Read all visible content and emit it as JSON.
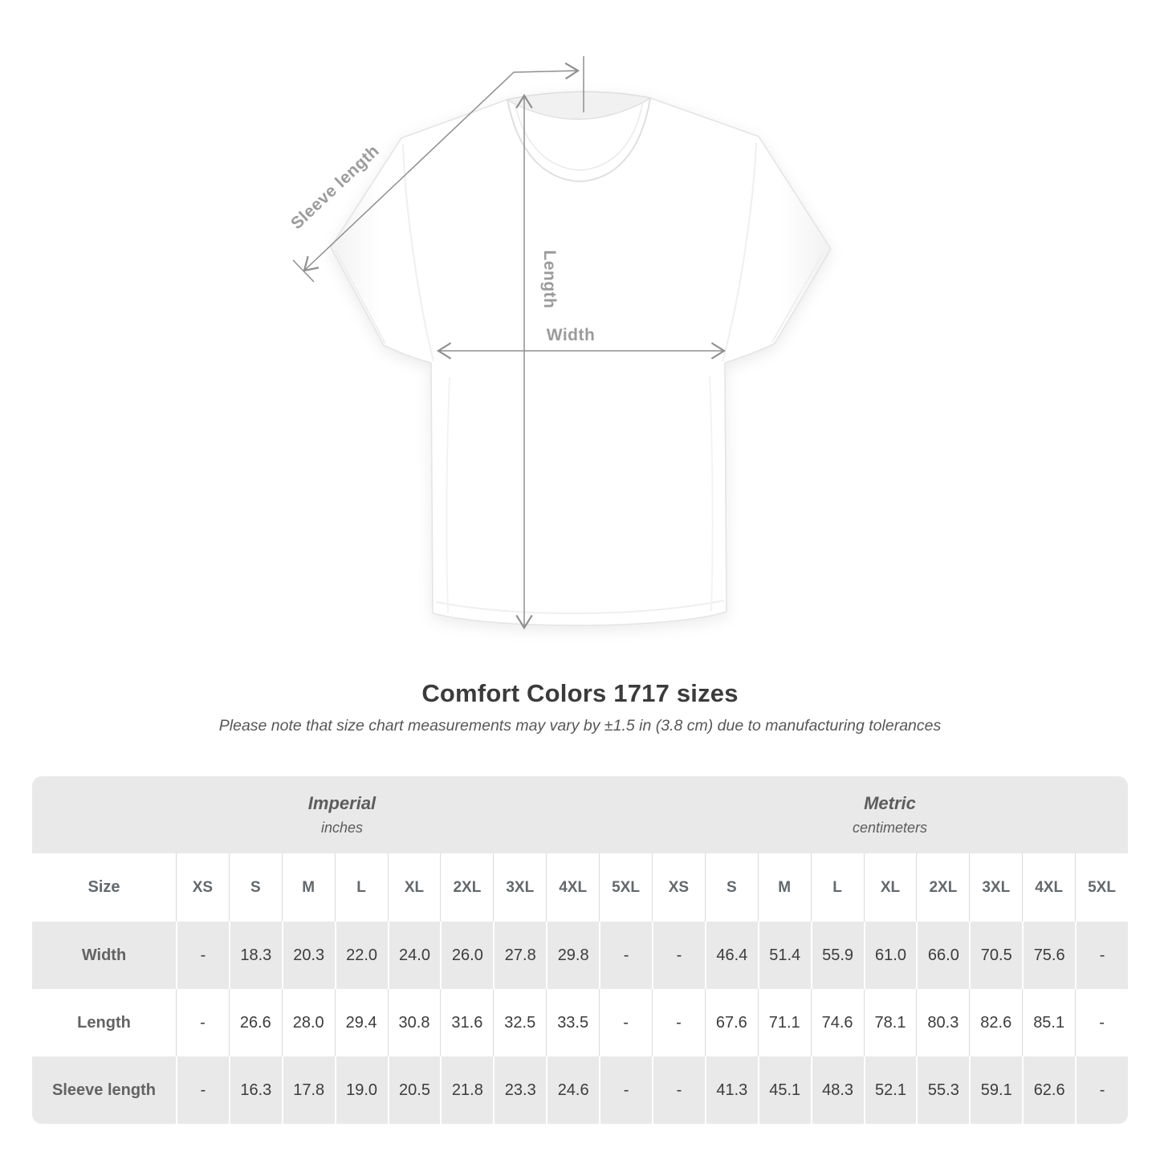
{
  "figure": {
    "description": "white t-shirt with measurement arrows",
    "labels": {
      "sleeve": "Sleeve length",
      "length": "Length",
      "width": "Width"
    }
  },
  "title": "Comfort Colors 1717 sizes",
  "note": "Please note that size chart measurements may vary by ±1.5 in (3.8 cm) due to manufacturing tolerances",
  "table": {
    "unit_headers": [
      {
        "name": "Imperial",
        "unit": "inches"
      },
      {
        "name": "Metric",
        "unit": "centimeters"
      }
    ],
    "size_label": "Size",
    "sizes": [
      "XS",
      "S",
      "M",
      "L",
      "XL",
      "2XL",
      "3XL",
      "4XL",
      "5XL"
    ],
    "rows": [
      {
        "label": "Width",
        "imperial": [
          "-",
          "18.3",
          "20.3",
          "22.0",
          "24.0",
          "26.0",
          "27.8",
          "29.8",
          "-"
        ],
        "metric": [
          "-",
          "46.4",
          "51.4",
          "55.9",
          "61.0",
          "66.0",
          "70.5",
          "75.6",
          "-"
        ]
      },
      {
        "label": "Length",
        "imperial": [
          "-",
          "26.6",
          "28.0",
          "29.4",
          "30.8",
          "31.6",
          "32.5",
          "33.5",
          "-"
        ],
        "metric": [
          "-",
          "67.6",
          "71.1",
          "74.6",
          "78.1",
          "80.3",
          "82.6",
          "85.1",
          "-"
        ]
      },
      {
        "label": "Sleeve length",
        "imperial": [
          "-",
          "16.3",
          "17.8",
          "19.0",
          "20.5",
          "21.8",
          "23.3",
          "24.6",
          "-"
        ],
        "metric": [
          "-",
          "41.3",
          "45.1",
          "48.3",
          "52.1",
          "55.3",
          "59.1",
          "62.6",
          "-"
        ]
      }
    ]
  },
  "colors": {
    "title_text": "#3b3b3b",
    "note_text": "#575757",
    "table_band_gray": "#e9e9e9",
    "value_text": "#3c3c3c",
    "annotation_line": "#8f8f8f",
    "annotation_label": "#9b9b9b"
  }
}
